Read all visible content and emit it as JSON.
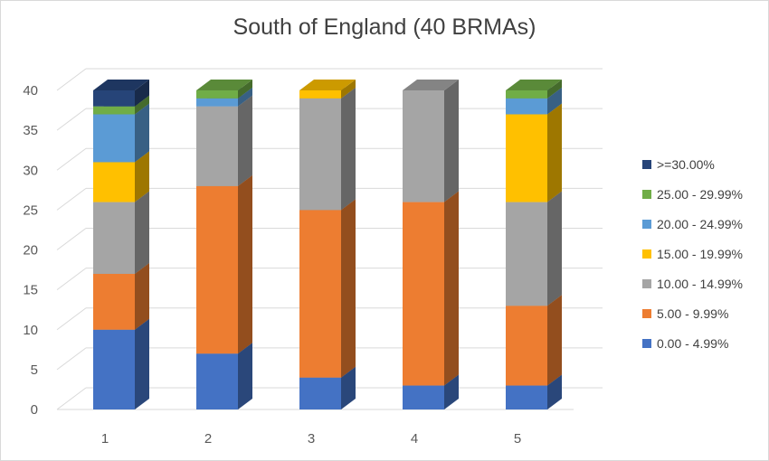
{
  "chart_data": {
    "type": "bar",
    "subtype": "stacked-3d",
    "title": "South of England (40 BRMAs)",
    "categories": [
      "1",
      "2",
      "3",
      "4",
      "5"
    ],
    "ylim": [
      0,
      40
    ],
    "yticks": [
      "0",
      "5",
      "10",
      "15",
      "20",
      "25",
      "30",
      "35",
      "40"
    ],
    "grid": true,
    "legend_position": "right",
    "series": [
      {
        "name": "0.00 - 4.99%",
        "color": "#4472c4",
        "values": [
          10,
          7,
          4,
          3,
          3
        ]
      },
      {
        "name": "5.00 - 9.99%",
        "color": "#ed7d31",
        "values": [
          7,
          21,
          21,
          23,
          10
        ]
      },
      {
        "name": "10.00 - 14.99%",
        "color": "#a5a5a5",
        "values": [
          9,
          10,
          14,
          14,
          13
        ]
      },
      {
        "name": "15.00 - 19.99%",
        "color": "#ffc000",
        "values": [
          5,
          0,
          1,
          0,
          11
        ]
      },
      {
        "name": "20.00 - 24.99%",
        "color": "#5b9bd5",
        "values": [
          6,
          1,
          0,
          0,
          2
        ]
      },
      {
        "name": "25.00 - 29.99%",
        "color": "#70ad47",
        "values": [
          1,
          1,
          0,
          0,
          1
        ]
      },
      {
        "name": ">=30.00%",
        "color": "#264478",
        "values": [
          2,
          0,
          0,
          0,
          0
        ]
      }
    ]
  }
}
